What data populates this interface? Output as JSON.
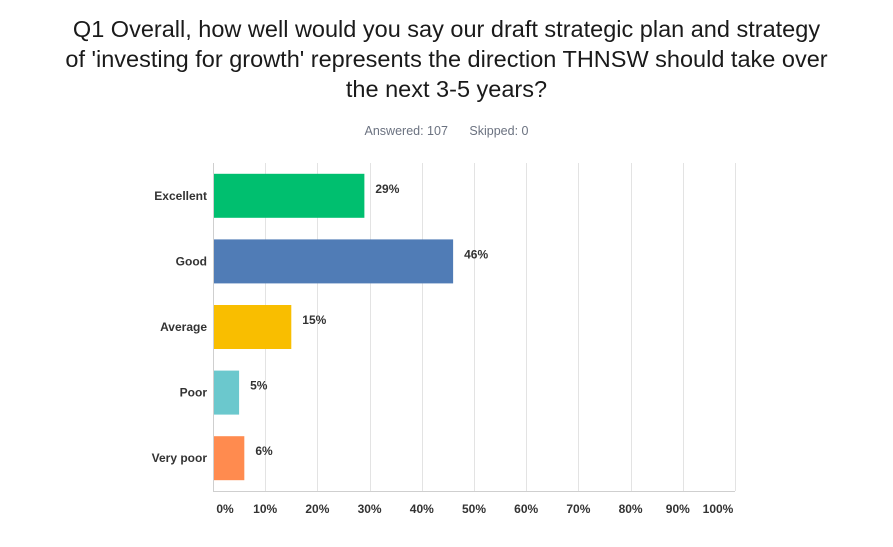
{
  "question": {
    "title_lines": [
      "Q1 Overall, how well would you say our draft strategic plan and strategy",
      "of 'investing for growth' represents the direction THNSW should take over",
      "the next 3-5 years?"
    ],
    "answered": "Answered: 107",
    "skipped": "Skipped: 0"
  },
  "chart_data": {
    "type": "bar",
    "orientation": "horizontal",
    "title": "Q1 Overall, how well would you say our draft strategic plan and strategy of 'investing for growth' represents the direction THNSW should take over the next 3-5 years?",
    "categories": [
      "Excellent",
      "Good",
      "Average",
      "Poor",
      "Very poor"
    ],
    "values": [
      29,
      46,
      15,
      5,
      6
    ],
    "value_labels": [
      "29%",
      "46%",
      "15%",
      "5%",
      "6%"
    ],
    "colors": [
      "#00bf6f",
      "#507cb6",
      "#f9be00",
      "#6bc8cd",
      "#ff8b4f"
    ],
    "xlim": [
      0,
      100
    ],
    "x_ticks": [
      0,
      10,
      20,
      30,
      40,
      50,
      60,
      70,
      80,
      90,
      100
    ],
    "x_tick_labels": [
      "0%",
      "10%",
      "20%",
      "30%",
      "40%",
      "50%",
      "60%",
      "70%",
      "80%",
      "90%",
      "100%"
    ],
    "grid": true,
    "xlabel": "",
    "ylabel": ""
  }
}
